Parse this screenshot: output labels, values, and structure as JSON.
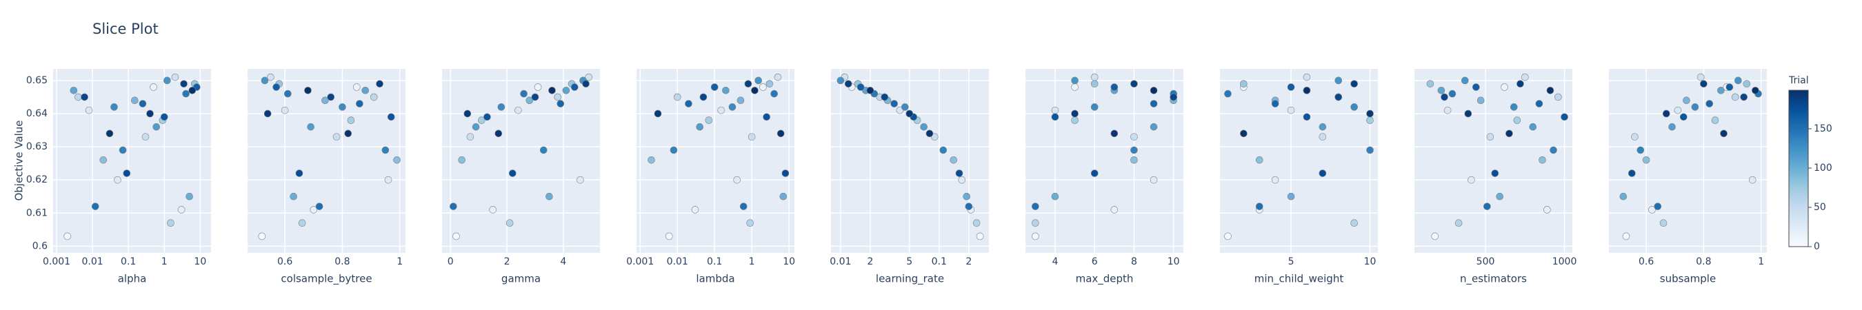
{
  "chart_data": {
    "type": "scatter",
    "title": "Slice Plot",
    "y_label": "Objective Value",
    "ylim": [
      0.598,
      0.6535
    ],
    "yticks": [
      0.6,
      0.61,
      0.62,
      0.63,
      0.64,
      0.65
    ],
    "grid": true,
    "values": [
      0.603,
      0.648,
      0.611,
      0.62,
      0.641,
      0.651,
      0.633,
      0.645,
      0.607,
      0.638,
      0.649,
      0.626,
      0.644,
      0.615,
      0.647,
      0.636,
      0.65,
      0.642,
      0.629,
      0.646,
      0.612,
      0.643,
      0.648,
      0.639,
      0.622,
      0.645,
      0.649,
      0.64,
      0.634,
      0.647
    ],
    "trials": [
      3,
      12,
      18,
      25,
      31,
      40,
      47,
      55,
      62,
      70,
      78,
      85,
      93,
      101,
      108,
      115,
      122,
      130,
      137,
      144,
      151,
      158,
      164,
      171,
      177,
      183,
      188,
      192,
      196,
      199
    ],
    "colorbar": {
      "title": "Trial",
      "clim": [
        0,
        199
      ],
      "ticks": [
        0,
        50,
        100,
        150
      ],
      "colorscale": [
        "#f7fbff",
        "#deebf7",
        "#c6dbef",
        "#9ecae1",
        "#6baed6",
        "#4292c6",
        "#2171b5",
        "#08519c",
        "#08306b"
      ]
    },
    "panels": [
      {
        "x_label": "alpha",
        "log_x": true,
        "xlim": [
          0.0008,
          20
        ],
        "xticks": [
          0.001,
          0.01,
          0.1,
          1,
          10
        ],
        "x": [
          0.002,
          0.5,
          3,
          0.05,
          0.008,
          2,
          0.3,
          0.004,
          1.5,
          0.9,
          7,
          0.02,
          0.15,
          5,
          0.003,
          0.6,
          1.2,
          0.04,
          0.07,
          4,
          0.012,
          0.25,
          8,
          1,
          0.09,
          0.006,
          3.5,
          0.4,
          0.03,
          6
        ]
      },
      {
        "x_label": "colsample_bytree",
        "log_x": false,
        "xlim": [
          0.47,
          1.02
        ],
        "xticks": [
          0.6,
          0.8,
          1
        ],
        "x": [
          0.52,
          0.85,
          0.7,
          0.96,
          0.6,
          0.55,
          0.78,
          0.91,
          0.66,
          0.83,
          0.58,
          0.99,
          0.74,
          0.63,
          0.88,
          0.69,
          0.53,
          0.8,
          0.95,
          0.61,
          0.72,
          0.86,
          0.57,
          0.97,
          0.65,
          0.76,
          0.93,
          0.54,
          0.82,
          0.68
        ]
      },
      {
        "x_label": "gamma",
        "log_x": false,
        "xlim": [
          -0.3,
          5.3
        ],
        "xticks": [
          0,
          2,
          4
        ],
        "x": [
          0.2,
          3.1,
          1.5,
          4.6,
          2.4,
          4.9,
          0.7,
          3.8,
          2.1,
          1.1,
          4.3,
          0.4,
          2.8,
          3.5,
          4.1,
          0.9,
          4.7,
          1.8,
          3.3,
          2.6,
          0.1,
          3.9,
          4.4,
          1.3,
          2.2,
          3,
          4.8,
          0.6,
          1.7,
          3.6
        ]
      },
      {
        "x_label": "lambda",
        "log_x": true,
        "xlim": [
          0.0008,
          14
        ],
        "xticks": [
          0.001,
          0.01,
          0.1,
          1,
          10
        ],
        "x": [
          0.006,
          2,
          0.03,
          0.4,
          0.15,
          5,
          1,
          0.01,
          0.9,
          0.07,
          3,
          0.002,
          0.5,
          7,
          0.2,
          0.04,
          1.5,
          0.3,
          0.008,
          4,
          0.6,
          0.02,
          0.1,
          2.5,
          8,
          0.05,
          0.8,
          0.003,
          6,
          1.2
        ]
      },
      {
        "x_label": "learning_rate",
        "log_x": true,
        "xlim": [
          0.008,
          0.32
        ],
        "xticks": [
          0.01,
          {
            "value": 0.02,
            "label": "2"
          },
          {
            "value": 0.05,
            "label": "5"
          },
          0.1,
          {
            "value": 0.2,
            "label": "2"
          }
        ],
        "x": [
          0.26,
          0.013,
          0.21,
          0.17,
          0.04,
          0.011,
          0.09,
          0.025,
          0.24,
          0.06,
          0.015,
          0.14,
          0.03,
          0.19,
          0.018,
          0.07,
          0.01,
          0.045,
          0.11,
          0.022,
          0.2,
          0.035,
          0.016,
          0.055,
          0.16,
          0.028,
          0.012,
          0.05,
          0.08,
          0.02
        ]
      },
      {
        "x_label": "max_depth",
        "log_x": false,
        "xlim": [
          2.5,
          10.5
        ],
        "xticks": [
          4,
          6,
          8,
          10
        ],
        "x": [
          3,
          5,
          7,
          9,
          4,
          6,
          8,
          10,
          3,
          5,
          6,
          8,
          10,
          4,
          7,
          9,
          5,
          6,
          8,
          10,
          3,
          9,
          7,
          4,
          6,
          10,
          8,
          5,
          7,
          9
        ]
      },
      {
        "x_label": "min_child_weight",
        "log_x": false,
        "xlim": [
          0.5,
          10.5
        ],
        "xticks": [
          5,
          10
        ],
        "x": [
          1,
          2,
          3,
          4,
          5,
          6,
          7,
          8,
          9,
          10,
          2,
          3,
          4,
          5,
          6,
          7,
          8,
          9,
          10,
          1,
          3,
          4,
          5,
          6,
          7,
          8,
          9,
          10,
          2,
          6
        ]
      },
      {
        "x_label": "n_estimators",
        "log_x": false,
        "xlim": [
          50,
          1050
        ],
        "xticks": [
          500,
          1000
        ],
        "x": [
          180,
          620,
          890,
          410,
          260,
          750,
          530,
          960,
          330,
          700,
          150,
          860,
          470,
          590,
          220,
          800,
          370,
          680,
          930,
          290,
          510,
          840,
          440,
          1000,
          560,
          240,
          720,
          390,
          650,
          910
        ]
      },
      {
        "x_label": "subsample",
        "log_x": false,
        "xlim": [
          0.47,
          1.02
        ],
        "xticks": [
          0.6,
          0.8,
          1
        ],
        "x": [
          0.53,
          0.88,
          0.62,
          0.97,
          0.71,
          0.79,
          0.56,
          0.91,
          0.66,
          0.84,
          0.95,
          0.6,
          0.74,
          0.52,
          0.86,
          0.69,
          0.92,
          0.77,
          0.58,
          0.99,
          0.64,
          0.82,
          0.89,
          0.73,
          0.55,
          0.94,
          0.8,
          0.67,
          0.87,
          0.98
        ]
      }
    ]
  }
}
